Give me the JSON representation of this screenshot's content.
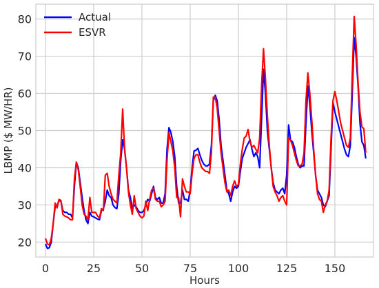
{
  "chart_data": {
    "type": "line",
    "title": "",
    "xlabel": "Hours",
    "ylabel": "LBMP ($ MW/HR)",
    "xlim": [
      -5,
      170
    ],
    "ylim": [
      16,
      84
    ],
    "xticks": [
      0,
      25,
      50,
      75,
      100,
      125,
      150
    ],
    "yticks": [
      20,
      30,
      40,
      50,
      60,
      70,
      80
    ],
    "grid": true,
    "legend_position": "top-left",
    "series": [
      {
        "name": "Actual",
        "color": "#0000ff",
        "points": [
          [
            0,
            19.5
          ],
          [
            1,
            18.3
          ],
          [
            2,
            18.5
          ],
          [
            3,
            20
          ],
          [
            4,
            25
          ],
          [
            5,
            29.5
          ],
          [
            6,
            29.8
          ],
          [
            7,
            31.2
          ],
          [
            8,
            31
          ],
          [
            9,
            28.5
          ],
          [
            10,
            28
          ],
          [
            11,
            28
          ],
          [
            12,
            27.5
          ],
          [
            13,
            27.5
          ],
          [
            14,
            26.5
          ],
          [
            15,
            35
          ],
          [
            16,
            41.5
          ],
          [
            17,
            40
          ],
          [
            18,
            36
          ],
          [
            19,
            32
          ],
          [
            20,
            28.5
          ],
          [
            21,
            26
          ],
          [
            22,
            25
          ],
          [
            23,
            28
          ],
          [
            24,
            27
          ],
          [
            25,
            26.8
          ],
          [
            26,
            26.5
          ],
          [
            27,
            26.2
          ],
          [
            28,
            26
          ],
          [
            29,
            28.5
          ],
          [
            30,
            29
          ],
          [
            31,
            31
          ],
          [
            32,
            34
          ],
          [
            33,
            32.5
          ],
          [
            34,
            32
          ],
          [
            35,
            30
          ],
          [
            36,
            29.3
          ],
          [
            37,
            29
          ],
          [
            38,
            33
          ],
          [
            39,
            42
          ],
          [
            40,
            47.5
          ],
          [
            41,
            45
          ],
          [
            42,
            40
          ],
          [
            43,
            34
          ],
          [
            44,
            32
          ],
          [
            45,
            29
          ],
          [
            46,
            30
          ],
          [
            47,
            29.5
          ],
          [
            48,
            28.5
          ],
          [
            49,
            28
          ],
          [
            50,
            28
          ],
          [
            51,
            28.5
          ],
          [
            52,
            30
          ],
          [
            53,
            31.5
          ],
          [
            54,
            31
          ],
          [
            55,
            33
          ],
          [
            56,
            35
          ],
          [
            57,
            32
          ],
          [
            58,
            31.5
          ],
          [
            59,
            32
          ],
          [
            60,
            30.5
          ],
          [
            61,
            30.5
          ],
          [
            62,
            33
          ],
          [
            63,
            45
          ],
          [
            64,
            50.8
          ],
          [
            65,
            49.5
          ],
          [
            66,
            47
          ],
          [
            67,
            43
          ],
          [
            68,
            35
          ],
          [
            69,
            30.5
          ],
          [
            70,
            30.5
          ],
          [
            71,
            34
          ],
          [
            72,
            31.5
          ],
          [
            73,
            31.5
          ],
          [
            74,
            31
          ],
          [
            75,
            34
          ],
          [
            76,
            40
          ],
          [
            77,
            44.5
          ],
          [
            78,
            44.7
          ],
          [
            79,
            45.2
          ],
          [
            80,
            43.5
          ],
          [
            81,
            42
          ],
          [
            82,
            41
          ],
          [
            83,
            40.5
          ],
          [
            84,
            40.5
          ],
          [
            85,
            41
          ],
          [
            86,
            46
          ],
          [
            87,
            58
          ],
          [
            88,
            59.5
          ],
          [
            89,
            58
          ],
          [
            90,
            53
          ],
          [
            91,
            46
          ],
          [
            92,
            42
          ],
          [
            93,
            38
          ],
          [
            94,
            34
          ],
          [
            95,
            33
          ],
          [
            96,
            31
          ],
          [
            97,
            33.5
          ],
          [
            98,
            35
          ],
          [
            99,
            34.5
          ],
          [
            100,
            35
          ],
          [
            101,
            39
          ],
          [
            102,
            42.5
          ],
          [
            103,
            44
          ],
          [
            104,
            45.5
          ],
          [
            105,
            46.5
          ],
          [
            106,
            47.5
          ],
          [
            107,
            45
          ],
          [
            108,
            43
          ],
          [
            109,
            44
          ],
          [
            110,
            43
          ],
          [
            111,
            40
          ],
          [
            112,
            53
          ],
          [
            113,
            66.5
          ],
          [
            114,
            60
          ],
          [
            115,
            50
          ],
          [
            116,
            45
          ],
          [
            117,
            40
          ],
          [
            118,
            36
          ],
          [
            119,
            34
          ],
          [
            120,
            33.5
          ],
          [
            121,
            33
          ],
          [
            122,
            34
          ],
          [
            123,
            34.5
          ],
          [
            124,
            33
          ],
          [
            125,
            38
          ],
          [
            126,
            51.5
          ],
          [
            127,
            47.5
          ],
          [
            128,
            47
          ],
          [
            129,
            45.5
          ],
          [
            130,
            43
          ],
          [
            131,
            41
          ],
          [
            132,
            40
          ],
          [
            133,
            40.5
          ],
          [
            134,
            40.5
          ],
          [
            135,
            52
          ],
          [
            136,
            62
          ],
          [
            137,
            57
          ],
          [
            138,
            50
          ],
          [
            139,
            44
          ],
          [
            140,
            38
          ],
          [
            141,
            34
          ],
          [
            142,
            33
          ],
          [
            143,
            32
          ],
          [
            144,
            30
          ],
          [
            145,
            29.5
          ],
          [
            146,
            31
          ],
          [
            147,
            32.5
          ],
          [
            148,
            45
          ],
          [
            149,
            57.5
          ],
          [
            150,
            55
          ],
          [
            151,
            53
          ],
          [
            152,
            51
          ],
          [
            153,
            49
          ],
          [
            154,
            47
          ],
          [
            155,
            45
          ],
          [
            156,
            43.5
          ],
          [
            157,
            43
          ],
          [
            158,
            46
          ],
          [
            159,
            60
          ],
          [
            160,
            75
          ],
          [
            161,
            70
          ],
          [
            162,
            62
          ],
          [
            163,
            52
          ],
          [
            164,
            47
          ],
          [
            165,
            46
          ],
          [
            166,
            42.5
          ]
        ]
      },
      {
        "name": "ESVR",
        "color": "#ff0000",
        "points": [
          [
            0,
            21
          ],
          [
            1,
            19.5
          ],
          [
            2,
            19.2
          ],
          [
            3,
            21
          ],
          [
            4,
            25
          ],
          [
            5,
            30.5
          ],
          [
            6,
            29.2
          ],
          [
            7,
            31.5
          ],
          [
            8,
            31.2
          ],
          [
            9,
            27.5
          ],
          [
            10,
            27
          ],
          [
            11,
            26.8
          ],
          [
            12,
            26.5
          ],
          [
            13,
            26
          ],
          [
            14,
            26
          ],
          [
            15,
            37
          ],
          [
            16,
            41.5
          ],
          [
            17,
            39.5
          ],
          [
            18,
            35
          ],
          [
            19,
            30
          ],
          [
            20,
            27.5
          ],
          [
            21,
            27
          ],
          [
            22,
            26
          ],
          [
            23,
            32
          ],
          [
            24,
            28
          ],
          [
            25,
            28
          ],
          [
            26,
            28
          ],
          [
            27,
            27
          ],
          [
            28,
            26.5
          ],
          [
            29,
            29
          ],
          [
            30,
            28.5
          ],
          [
            31,
            38
          ],
          [
            32,
            38.5
          ],
          [
            33,
            35
          ],
          [
            34,
            33
          ],
          [
            35,
            31.5
          ],
          [
            36,
            31
          ],
          [
            37,
            30.5
          ],
          [
            38,
            38
          ],
          [
            39,
            44
          ],
          [
            40,
            55.8
          ],
          [
            41,
            45
          ],
          [
            42,
            40
          ],
          [
            43,
            33.5
          ],
          [
            44,
            30
          ],
          [
            45,
            27.5
          ],
          [
            46,
            32.5
          ],
          [
            47,
            29
          ],
          [
            48,
            28
          ],
          [
            49,
            27
          ],
          [
            50,
            26.5
          ],
          [
            51,
            27
          ],
          [
            52,
            31
          ],
          [
            53,
            28.5
          ],
          [
            54,
            31.5
          ],
          [
            55,
            34
          ],
          [
            56,
            34.5
          ],
          [
            57,
            31.5
          ],
          [
            58,
            31
          ],
          [
            59,
            31
          ],
          [
            60,
            29.5
          ],
          [
            61,
            30
          ],
          [
            62,
            31
          ],
          [
            63,
            42
          ],
          [
            64,
            49.5
          ],
          [
            65,
            47
          ],
          [
            66,
            44.5
          ],
          [
            67,
            40
          ],
          [
            68,
            32
          ],
          [
            69,
            32
          ],
          [
            70,
            26.8
          ],
          [
            71,
            37
          ],
          [
            72,
            35
          ],
          [
            73,
            33.5
          ],
          [
            74,
            33.5
          ],
          [
            75,
            33
          ],
          [
            76,
            38.5
          ],
          [
            77,
            42.5
          ],
          [
            78,
            43.5
          ],
          [
            79,
            43.5
          ],
          [
            80,
            41.5
          ],
          [
            81,
            40
          ],
          [
            82,
            39.5
          ],
          [
            83,
            39
          ],
          [
            84,
            39
          ],
          [
            85,
            38.5
          ],
          [
            86,
            44
          ],
          [
            87,
            59
          ],
          [
            88,
            59
          ],
          [
            89,
            56
          ],
          [
            90,
            50
          ],
          [
            91,
            44
          ],
          [
            92,
            40
          ],
          [
            93,
            36
          ],
          [
            94,
            33.5
          ],
          [
            95,
            34
          ],
          [
            96,
            32.5
          ],
          [
            97,
            35
          ],
          [
            98,
            36.5
          ],
          [
            99,
            35
          ],
          [
            100,
            35.5
          ],
          [
            101,
            41
          ],
          [
            102,
            45
          ],
          [
            103,
            48
          ],
          [
            104,
            48.5
          ],
          [
            105,
            50.3
          ],
          [
            106,
            47
          ],
          [
            107,
            45.5
          ],
          [
            108,
            46
          ],
          [
            109,
            45
          ],
          [
            110,
            44
          ],
          [
            111,
            48
          ],
          [
            112,
            62
          ],
          [
            113,
            72
          ],
          [
            114,
            64
          ],
          [
            115,
            54
          ],
          [
            116,
            46
          ],
          [
            117,
            40
          ],
          [
            118,
            35
          ],
          [
            119,
            33.5
          ],
          [
            120,
            32.5
          ],
          [
            121,
            31
          ],
          [
            122,
            32
          ],
          [
            123,
            32.5
          ],
          [
            124,
            31
          ],
          [
            125,
            30
          ],
          [
            126,
            48
          ],
          [
            127,
            47.5
          ],
          [
            128,
            46
          ],
          [
            129,
            44
          ],
          [
            130,
            42
          ],
          [
            131,
            40.5
          ],
          [
            132,
            40.5
          ],
          [
            133,
            41
          ],
          [
            134,
            44
          ],
          [
            135,
            58
          ],
          [
            136,
            65.5
          ],
          [
            137,
            60
          ],
          [
            138,
            53
          ],
          [
            139,
            45
          ],
          [
            140,
            38
          ],
          [
            141,
            33
          ],
          [
            142,
            31.5
          ],
          [
            143,
            31
          ],
          [
            144,
            28
          ],
          [
            145,
            30
          ],
          [
            146,
            31
          ],
          [
            147,
            34
          ],
          [
            148,
            48
          ],
          [
            149,
            58
          ],
          [
            150,
            60.5
          ],
          [
            151,
            58
          ],
          [
            152,
            55
          ],
          [
            153,
            52
          ],
          [
            154,
            50
          ],
          [
            155,
            48
          ],
          [
            156,
            46
          ],
          [
            157,
            45.5
          ],
          [
            158,
            48
          ],
          [
            159,
            65
          ],
          [
            160,
            80.7
          ],
          [
            161,
            73
          ],
          [
            162,
            63
          ],
          [
            163,
            55
          ],
          [
            164,
            51
          ],
          [
            165,
            50.5
          ],
          [
            166,
            44
          ]
        ]
      }
    ]
  }
}
